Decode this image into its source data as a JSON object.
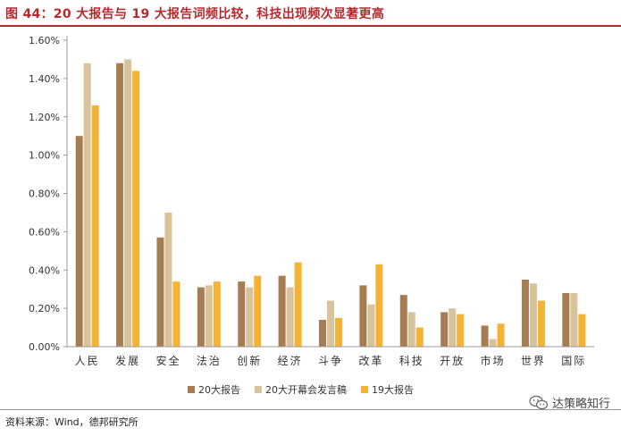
{
  "title": "图 44：20 大报告与 19 大报告词频比较，科技出现频次显著更高",
  "source": "资料来源：Wind，德邦研究所",
  "watermark": "达策略知行",
  "colors": {
    "title": "#b8292f",
    "series": [
      "#a67c52",
      "#d8c39a",
      "#f5b335"
    ]
  },
  "chart_data": {
    "type": "bar",
    "categories": [
      "人民",
      "发展",
      "安全",
      "法治",
      "创新",
      "经济",
      "斗争",
      "改革",
      "科技",
      "开放",
      "市场",
      "世界",
      "国际"
    ],
    "series": [
      {
        "name": "20大报告",
        "values": [
          1.1,
          1.48,
          0.57,
          0.31,
          0.34,
          0.37,
          0.14,
          0.32,
          0.27,
          0.18,
          0.11,
          0.35,
          0.28
        ]
      },
      {
        "name": "20大开幕会发言稿",
        "values": [
          1.48,
          1.5,
          0.7,
          0.32,
          0.31,
          0.31,
          0.24,
          0.22,
          0.18,
          0.2,
          0.04,
          0.33,
          0.28
        ]
      },
      {
        "name": "19大报告",
        "values": [
          1.26,
          1.44,
          0.34,
          0.34,
          0.37,
          0.44,
          0.15,
          0.43,
          0.1,
          0.17,
          0.12,
          0.24,
          0.17
        ]
      }
    ],
    "yticks": [
      "0.00%",
      "0.20%",
      "0.40%",
      "0.60%",
      "0.80%",
      "1.00%",
      "1.20%",
      "1.40%",
      "1.60%"
    ],
    "ylim": [
      0,
      1.6
    ],
    "grid": false,
    "legend_position": "bottom"
  }
}
